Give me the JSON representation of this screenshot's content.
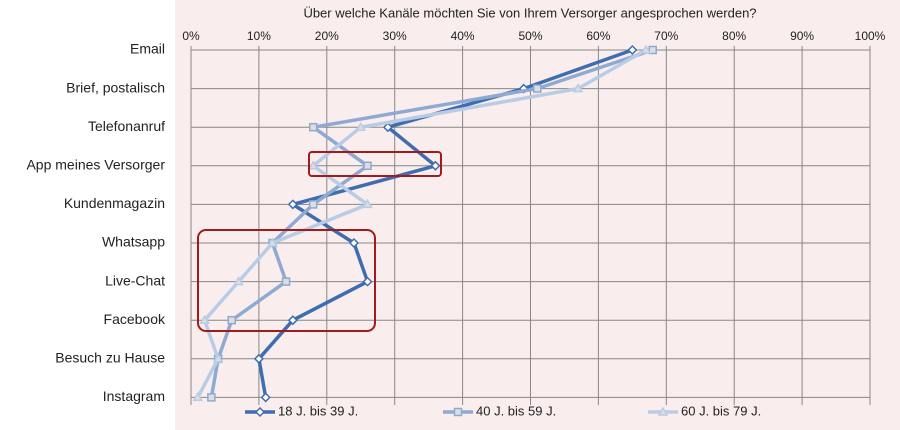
{
  "chart_data": {
    "type": "line",
    "orientation": "horizontal",
    "title": "Über welche Kanäle möchten Sie von Ihrem Versorger angesprochen werden?",
    "categories": [
      "Email",
      "Brief, postalisch",
      "Telefonanruf",
      "App meines Versorger",
      "Kundenmagazin",
      "Whatsapp",
      "Live-Chat",
      "Facebook",
      "Besuch zu Hause",
      "Instagram"
    ],
    "series": [
      {
        "name": "18 J. bis 39 J.",
        "color": "#3e6eb0",
        "marker": "diamond",
        "values": [
          65,
          49,
          29,
          36,
          15,
          24,
          26,
          15,
          10,
          11
        ]
      },
      {
        "name": "40 J. bis 59 J.",
        "color": "#8eaad2",
        "marker": "square",
        "values": [
          68,
          51,
          18,
          26,
          18,
          12,
          14,
          6,
          4,
          3
        ]
      },
      {
        "name": "60 J. bis 79 J.",
        "color": "#b9cce6",
        "marker": "triangle",
        "values": [
          67,
          57,
          25,
          18,
          26,
          12,
          7,
          2,
          4,
          1
        ]
      }
    ],
    "xlim": [
      0,
      100
    ],
    "xticks": [
      {
        "value": 0,
        "label": "0%"
      },
      {
        "value": 10,
        "label": "10%"
      },
      {
        "value": 20,
        "label": "20%"
      },
      {
        "value": 30,
        "label": "30%"
      },
      {
        "value": 40,
        "label": "40%"
      },
      {
        "value": 50,
        "label": "50%"
      },
      {
        "value": 60,
        "label": "60%"
      },
      {
        "value": 70,
        "label": "70%"
      },
      {
        "value": 80,
        "label": "80%"
      },
      {
        "value": 90,
        "label": "90%"
      },
      {
        "value": 100,
        "label": "100%"
      }
    ],
    "grid": true,
    "legend": "bottom"
  }
}
